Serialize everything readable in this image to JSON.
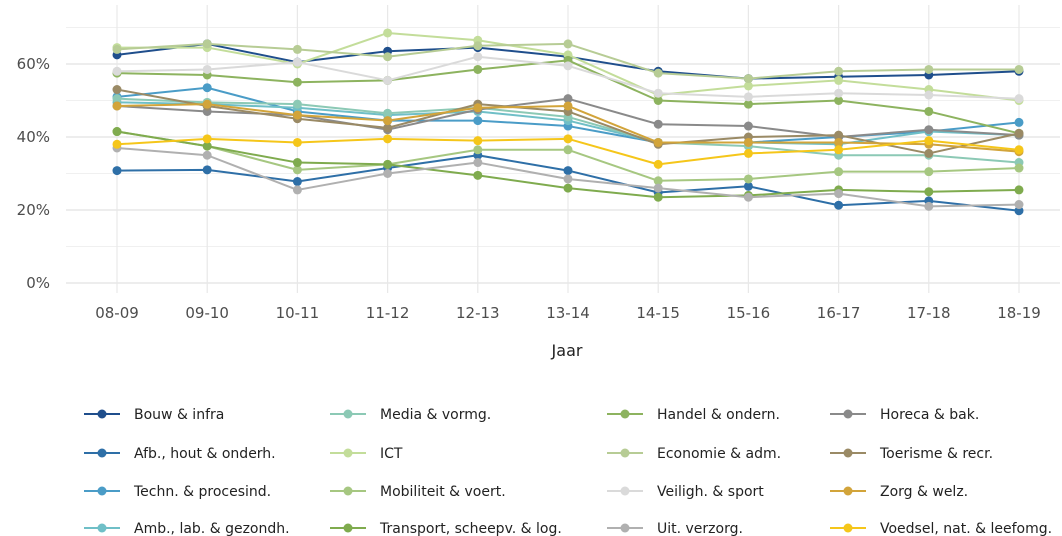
{
  "chart_data": {
    "type": "line",
    "xlabel": "Jaar",
    "ylabel": "",
    "categories": [
      "08-09",
      "09-10",
      "10-11",
      "11-12",
      "12-13",
      "13-14",
      "14-15",
      "15-16",
      "16-17",
      "17-18",
      "18-19"
    ],
    "ylim": [
      0,
      70
    ],
    "yticks": [
      0,
      20,
      40,
      60
    ],
    "ytick_labels": [
      "0%",
      "20%",
      "40%",
      "60%"
    ],
    "grid": true,
    "legend_position": "bottom",
    "series": [
      {
        "name": "Bouw & infra",
        "color": "#1f4e8c",
        "values": [
          62.5,
          65.5,
          60.5,
          63.5,
          64.5,
          62,
          58,
          56,
          56.5,
          57,
          58
        ]
      },
      {
        "name": "Afb., hout & onderh.",
        "color": "#2e6fa7",
        "values": [
          30.8,
          31,
          27.8,
          31.5,
          35,
          30.8,
          24.8,
          26.5,
          21.3,
          22.5,
          19.8
        ]
      },
      {
        "name": "Techn. & procesind.",
        "color": "#4a9cc7",
        "values": [
          51,
          53.5,
          47,
          44.5,
          44.5,
          43,
          38.5,
          38.5,
          40,
          41.5,
          44
        ]
      },
      {
        "name": "Amb., lab. & gezondh.",
        "color": "#6fbfc7",
        "values": [
          49.5,
          49,
          48,
          46,
          47,
          44.5,
          38.5,
          38.5,
          38,
          41.5,
          40.5
        ]
      },
      {
        "name": "Media & vormg.",
        "color": "#8cc9b5",
        "values": [
          50.5,
          49.5,
          49,
          46.5,
          48,
          45.5,
          38.5,
          37.5,
          35,
          35,
          33
        ]
      },
      {
        "name": "ICT",
        "color": "#c3dd9a",
        "values": [
          64.5,
          64.5,
          60,
          68.5,
          66.5,
          62.5,
          51.5,
          54,
          55.5,
          53,
          50
        ]
      },
      {
        "name": "Mobiliteit & voert.",
        "color": "#a6c781",
        "values": [
          41.5,
          37.5,
          31,
          32.5,
          36.5,
          36.5,
          28,
          28.5,
          30.5,
          30.5,
          31.5
        ]
      },
      {
        "name": "Transport, scheepv. & log.",
        "color": "#7fab4e",
        "values": [
          41.5,
          37.5,
          33,
          32.5,
          29.5,
          26,
          23.5,
          24,
          25.5,
          25,
          25.5
        ]
      },
      {
        "name": "Handel & ondern.",
        "color": "#8db35f",
        "values": [
          57.5,
          57,
          55,
          55.5,
          58.5,
          61,
          50,
          49,
          50,
          47,
          41
        ]
      },
      {
        "name": "Economie & adm.",
        "color": "#b7cc95",
        "values": [
          64,
          65.5,
          64,
          62,
          65,
          65.5,
          57.5,
          56,
          58,
          58.5,
          58.5
        ]
      },
      {
        "name": "Veiligh. & sport",
        "color": "#dadada",
        "values": [
          58,
          58.5,
          60.5,
          55.5,
          62,
          59.5,
          52,
          51,
          52,
          51.5,
          50.5
        ]
      },
      {
        "name": "Uit. verzorg.",
        "color": "#b0b0b0",
        "values": [
          37,
          35,
          25.5,
          30,
          33,
          28.5,
          26,
          23.5,
          24.5,
          21,
          21.5
        ]
      },
      {
        "name": "Horeca & bak.",
        "color": "#8a8a8a",
        "values": [
          48.5,
          47,
          46,
          42,
          47.5,
          50.5,
          43.5,
          43,
          40,
          42,
          40.5
        ]
      },
      {
        "name": "Toerisme & recr.",
        "color": "#9a8a65",
        "values": [
          53,
          48.5,
          45,
          42.5,
          49,
          47,
          38,
          40,
          40.5,
          35.5,
          41
        ]
      },
      {
        "name": "Zorg & welz.",
        "color": "#d2a43a",
        "values": [
          48.5,
          49,
          46,
          44.5,
          48,
          48.5,
          38.5,
          38.5,
          38.5,
          38,
          36
        ]
      },
      {
        "name": "Voedsel, nat. & leefomg.",
        "color": "#f5c61a",
        "values": [
          38,
          39.5,
          38.5,
          39.5,
          39,
          39.5,
          32.5,
          35.5,
          36.5,
          39,
          36.5
        ]
      }
    ]
  }
}
